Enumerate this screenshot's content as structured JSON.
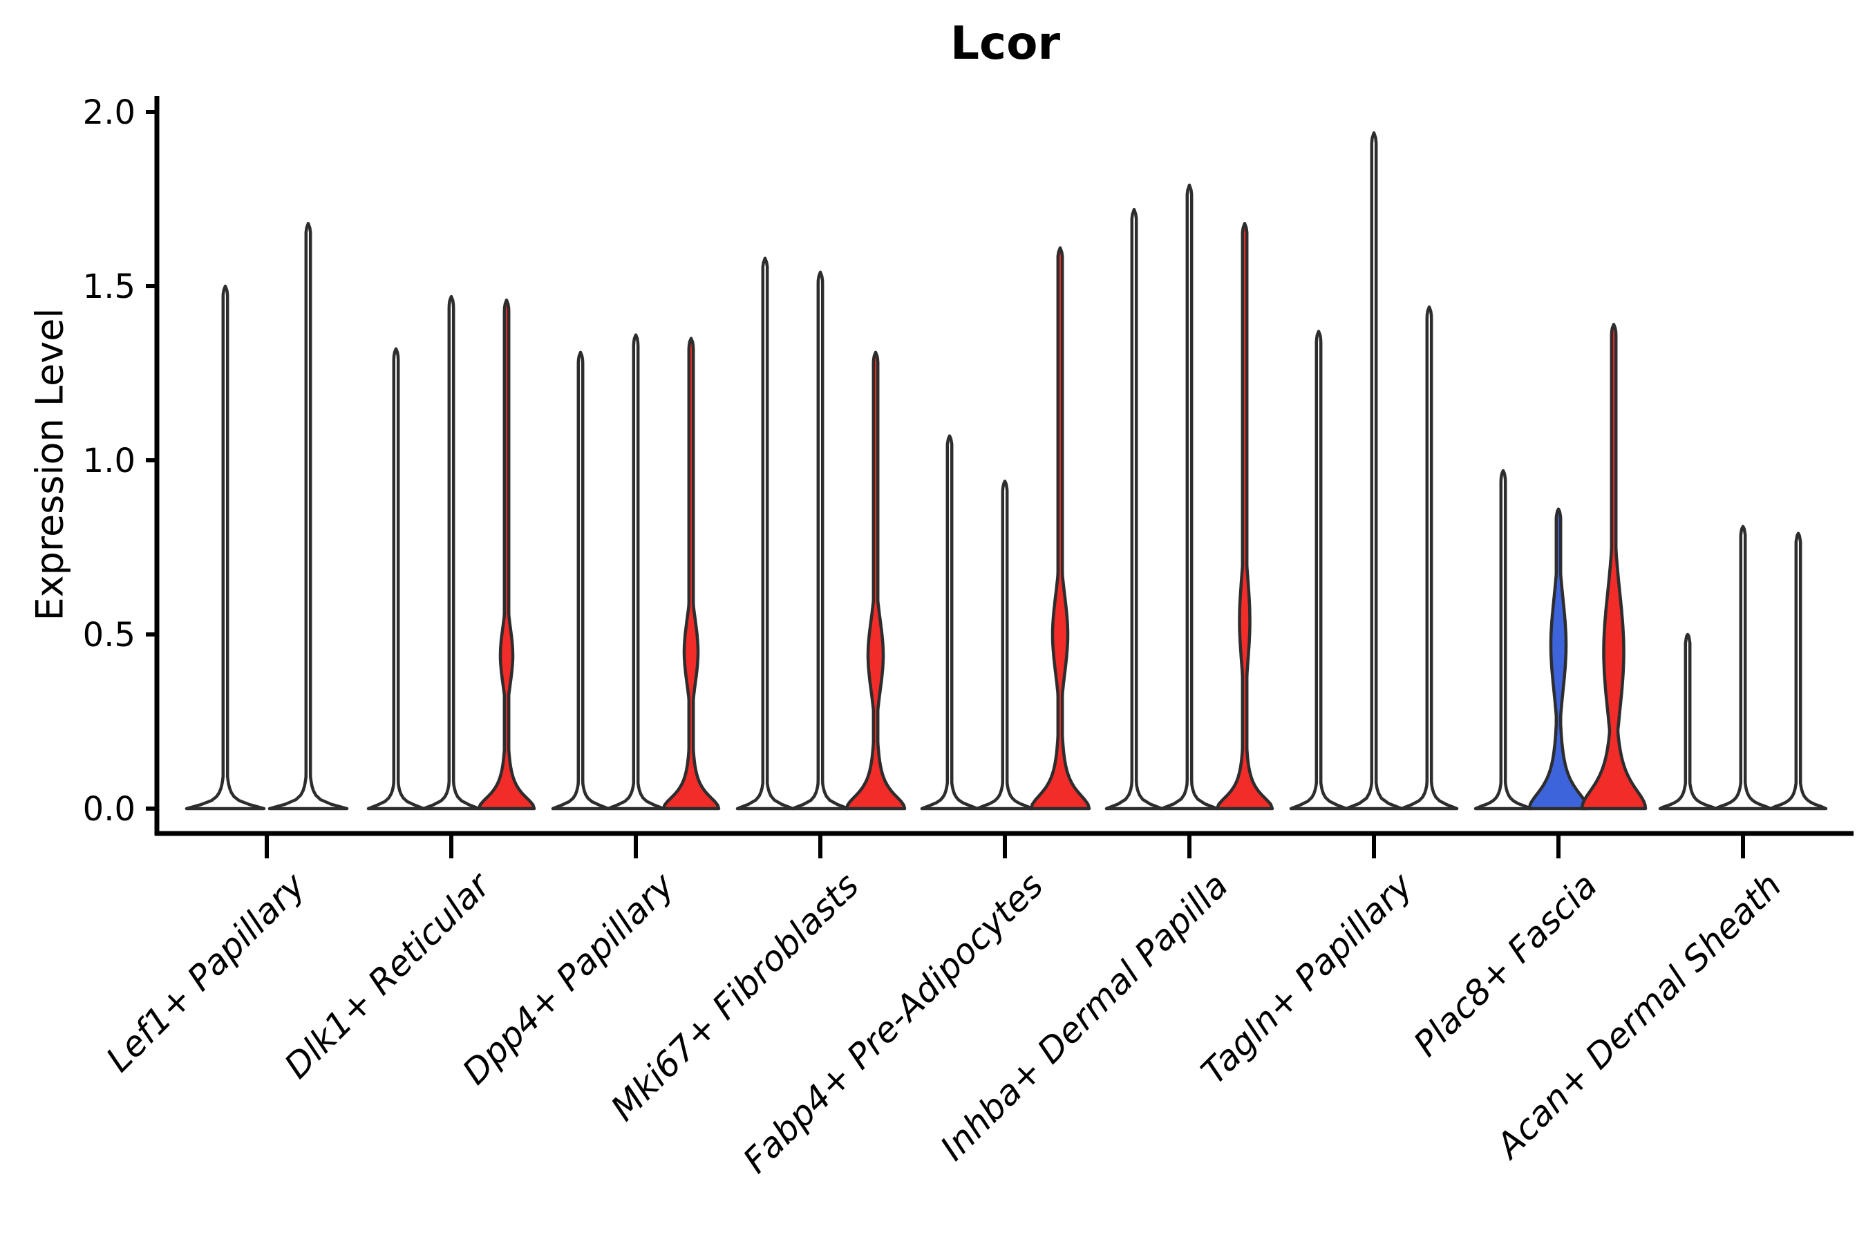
{
  "chart_data": {
    "type": "violin",
    "title": "Lcor",
    "ylabel": "Expression Level",
    "ylim": [
      0,
      2.0
    ],
    "yticks": [
      "0.0",
      "0.5",
      "1.0",
      "1.5",
      "2.0"
    ],
    "grid": false,
    "legend": null,
    "x_label_rotation": 45,
    "x_labels_italic": true,
    "spines": [
      "left",
      "bottom"
    ],
    "colors": {
      "red": "#F22C29",
      "blue": "#3E64DC",
      "white": "#FFFFFF",
      "outline": "#2D2D2D"
    },
    "categories": [
      {
        "label": "Lef1+ Papillary",
        "violins": [
          {
            "peak": 1.5,
            "fill": "white",
            "base": {
              "hw": 56
            }
          },
          {
            "peak": 1.68,
            "fill": "white",
            "base": {
              "hw": 56
            }
          }
        ]
      },
      {
        "label": "Dlk1+ Reticular",
        "violins": [
          {
            "peak": 1.32,
            "fill": "white"
          },
          {
            "peak": 1.47,
            "fill": "white"
          },
          {
            "peak": 1.46,
            "fill": "red",
            "base": {
              "hw": 40,
              "h": 0.05,
              "p": 2.0
            },
            "bulge": {
              "center": 0.44,
              "spread": 0.08,
              "halfwidth": 9
            }
          }
        ]
      },
      {
        "label": "Dpp4+ Papillary",
        "violins": [
          {
            "peak": 1.31,
            "fill": "white"
          },
          {
            "peak": 1.36,
            "fill": "white"
          },
          {
            "peak": 1.35,
            "fill": "red",
            "base": {
              "hw": 40,
              "h": 0.05,
              "p": 2.0
            },
            "bulge": {
              "center": 0.45,
              "spread": 0.09,
              "halfwidth": 10
            }
          }
        ]
      },
      {
        "label": "Mki67+ Fibroblasts",
        "violins": [
          {
            "peak": 1.58,
            "fill": "white"
          },
          {
            "peak": 1.54,
            "fill": "white"
          },
          {
            "peak": 1.31,
            "fill": "red",
            "base": {
              "hw": 42,
              "h": 0.055,
              "p": 2.0
            },
            "bulge": {
              "center": 0.44,
              "spread": 0.1,
              "halfwidth": 11
            }
          }
        ]
      },
      {
        "label": "Fabp4+ Pre-Adipocytes",
        "violins": [
          {
            "peak": 1.07,
            "fill": "white"
          },
          {
            "peak": 0.94,
            "fill": "white"
          },
          {
            "peak": 1.61,
            "fill": "red",
            "base": {
              "hw": 42,
              "h": 0.06,
              "p": 2.0
            },
            "bulge": {
              "center": 0.5,
              "spread": 0.11,
              "halfwidth": 11
            }
          }
        ]
      },
      {
        "label": "Inhba+ Dermal Papilla",
        "violins": [
          {
            "peak": 1.72,
            "fill": "white"
          },
          {
            "peak": 1.79,
            "fill": "white"
          },
          {
            "peak": 1.68,
            "fill": "red",
            "base": {
              "hw": 40,
              "h": 0.05,
              "p": 2.0
            },
            "bulge": {
              "center": 0.54,
              "spread": 0.12,
              "halfwidth": 7.5
            }
          }
        ]
      },
      {
        "label": "Tagln+ Papillary",
        "violins": [
          {
            "peak": 1.37,
            "fill": "white"
          },
          {
            "peak": 1.94,
            "fill": "white"
          },
          {
            "peak": 1.44,
            "fill": "white"
          }
        ]
      },
      {
        "label": "Plac8+ Fascia",
        "violins": [
          {
            "peak": 0.97,
            "fill": "white"
          },
          {
            "peak": 0.86,
            "fill": "blue",
            "base": {
              "hw": 42,
              "h": 0.07,
              "p": 2.0
            },
            "bulge": {
              "center": 0.47,
              "spread": 0.13,
              "halfwidth": 11
            }
          },
          {
            "peak": 1.39,
            "fill": "red",
            "base": {
              "hw": 46,
              "h": 0.085,
              "p": 2.0
            },
            "bulge": {
              "center": 0.45,
              "spread": 0.17,
              "halfwidth": 14.5
            }
          }
        ]
      },
      {
        "label": "Acan+ Dermal Sheath",
        "violins": [
          {
            "peak": 0.5,
            "fill": "white"
          },
          {
            "peak": 0.81,
            "fill": "white"
          },
          {
            "peak": 0.79,
            "fill": "white"
          }
        ]
      }
    ]
  }
}
